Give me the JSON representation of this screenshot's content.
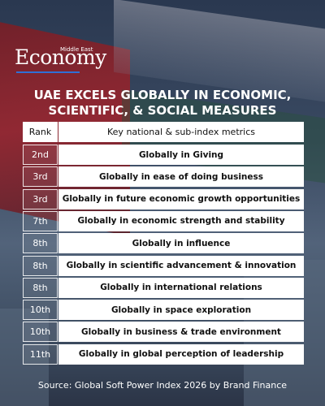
{
  "header": {
    "logo_small": "Middle East",
    "logo": "Economy"
  },
  "title": [
    "UAE EXCELS GLOBALLY IN ECONOMIC,",
    "SCIENTIFIC, & SOCIAL MEASURES"
  ],
  "table": {
    "columns": [
      "Rank",
      "Key national & sub-index metrics"
    ],
    "rows": [
      [
        "2nd",
        "Globally in Giving"
      ],
      [
        "3rd",
        "Globally in ease of doing business"
      ],
      [
        "3rd",
        "Globally in future economic growth opportunities"
      ],
      [
        "7th",
        "Globally in economic strength and stability"
      ],
      [
        "8th",
        "Globally in influence"
      ],
      [
        "8th",
        "Globally in scientific advancement & innovation"
      ],
      [
        "8th",
        "Globally in international relations"
      ],
      [
        "10th",
        "Globally in space exploration"
      ],
      [
        "10th",
        "Globally in business & trade environment"
      ],
      [
        "11th",
        "Globally in global perception of leadership"
      ]
    ]
  },
  "footer": {
    "source": "Source: Global Soft Power Index 2026 by Brand Finance"
  }
}
